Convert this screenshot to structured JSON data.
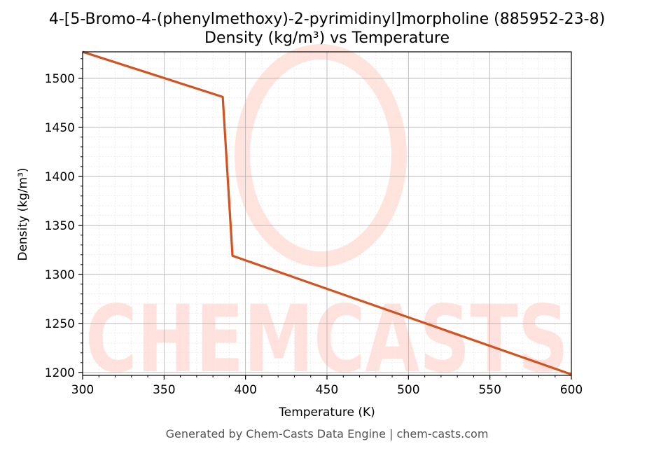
{
  "chart_data": {
    "type": "line",
    "title": "4-[5-Bromo-4-(phenylmethoxy)-2-pyrimidinyl]morpholine (885952-23-8)",
    "subtitle": "Density (kg/m³) vs Temperature",
    "xlabel": "Temperature (K)",
    "ylabel": "Density (kg/m³)",
    "xlim": [
      300,
      600
    ],
    "ylim": [
      1197,
      1527
    ],
    "xticks": [
      300,
      350,
      400,
      450,
      500,
      550,
      600
    ],
    "yticks": [
      1200,
      1250,
      1300,
      1350,
      1400,
      1450,
      1500
    ],
    "grid": true,
    "legend": "none",
    "series": [
      {
        "color": "#d4521f",
        "x": [
          300,
          386,
          392,
          600
        ],
        "y": [
          1527,
          1481,
          1319,
          1198
        ]
      }
    ],
    "watermark": "CHEMCASTS"
  },
  "footer": "Generated by Chem-Casts Data Engine | chem-casts.com"
}
